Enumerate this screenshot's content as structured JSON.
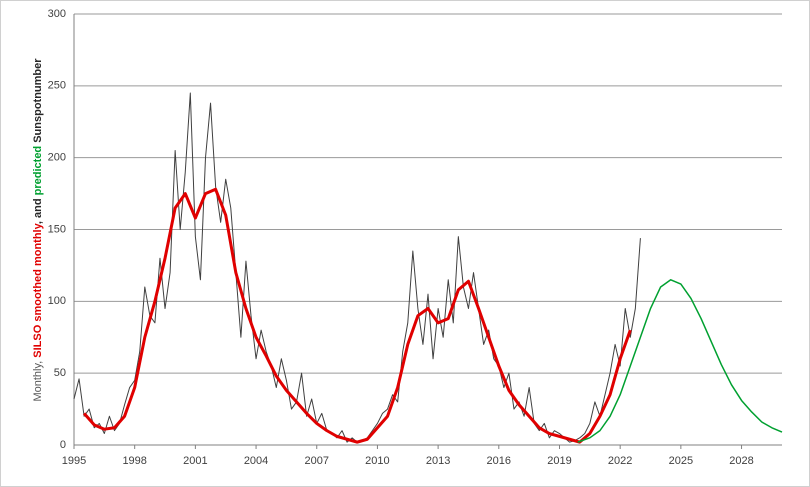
{
  "chart_data": {
    "type": "line",
    "ylabel_parts": [
      {
        "text": "Monthly, ",
        "color": "#595959"
      },
      {
        "text": "SILSO smoothed monthly",
        "color": "#e00000"
      },
      {
        "text": ", and ",
        "color": "#262626"
      },
      {
        "text": "predicted",
        "color": "#00a030"
      },
      {
        "text": " Sunspotnumber",
        "color": "#262626"
      }
    ],
    "xlim": [
      1995,
      2030
    ],
    "ylim": [
      0,
      300
    ],
    "xticks": [
      1995,
      1998,
      2001,
      2004,
      2007,
      2010,
      2013,
      2016,
      2019,
      2022,
      2025,
      2028
    ],
    "yticks": [
      0,
      50,
      100,
      150,
      200,
      250,
      300
    ],
    "grid": true,
    "series": [
      {
        "color": "#404040",
        "line_width": 1,
        "x": [
          1995,
          1995.25,
          1995.5,
          1995.75,
          1996,
          1996.25,
          1996.5,
          1996.75,
          1997,
          1997.25,
          1997.5,
          1997.75,
          1998,
          1998.25,
          1998.5,
          1998.75,
          1999,
          1999.25,
          1999.5,
          1999.75,
          2000,
          2000.25,
          2000.5,
          2000.75,
          2001,
          2001.25,
          2001.5,
          2001.75,
          2002,
          2002.25,
          2002.5,
          2002.75,
          2003,
          2003.25,
          2003.5,
          2003.75,
          2004,
          2004.25,
          2004.5,
          2004.75,
          2005,
          2005.25,
          2005.5,
          2005.75,
          2006,
          2006.25,
          2006.5,
          2006.75,
          2007,
          2007.25,
          2007.5,
          2007.75,
          2008,
          2008.25,
          2008.5,
          2008.75,
          2009,
          2009.25,
          2009.5,
          2009.75,
          2010,
          2010.25,
          2010.5,
          2010.75,
          2011,
          2011.25,
          2011.5,
          2011.75,
          2012,
          2012.25,
          2012.5,
          2012.75,
          2013,
          2013.25,
          2013.5,
          2013.75,
          2014,
          2014.25,
          2014.5,
          2014.75,
          2015,
          2015.25,
          2015.5,
          2015.75,
          2016,
          2016.25,
          2016.5,
          2016.75,
          2017,
          2017.25,
          2017.5,
          2017.75,
          2018,
          2018.25,
          2018.5,
          2018.75,
          2019,
          2019.25,
          2019.5,
          2019.75,
          2020,
          2020.25,
          2020.5,
          2020.75,
          2021,
          2021.25,
          2021.5,
          2021.75,
          2022,
          2022.25,
          2022.5,
          2022.75,
          2023
        ],
        "values": [
          32,
          46,
          20,
          25,
          12,
          15,
          8,
          20,
          10,
          15,
          28,
          40,
          45,
          65,
          110,
          90,
          85,
          130,
          95,
          120,
          205,
          150,
          190,
          245,
          145,
          115,
          200,
          238,
          180,
          155,
          185,
          165,
          120,
          75,
          128,
          90,
          60,
          80,
          65,
          55,
          40,
          60,
          45,
          25,
          30,
          50,
          20,
          32,
          15,
          22,
          10,
          8,
          5,
          10,
          2,
          5,
          2,
          3,
          5,
          10,
          15,
          22,
          25,
          35,
          30,
          65,
          85,
          135,
          95,
          70,
          105,
          60,
          95,
          75,
          115,
          85,
          145,
          110,
          95,
          120,
          95,
          70,
          80,
          60,
          55,
          40,
          50,
          25,
          30,
          20,
          40,
          15,
          10,
          15,
          5,
          10,
          8,
          5,
          2,
          3,
          5,
          8,
          15,
          30,
          20,
          35,
          50,
          70,
          55,
          95,
          75,
          95,
          144
        ]
      },
      {
        "color": "#e00000",
        "line_width": 3,
        "x": [
          1995.5,
          1996,
          1996.5,
          1997,
          1997.5,
          1998,
          1998.5,
          1999,
          1999.5,
          2000,
          2000.5,
          2001,
          2001.5,
          2002,
          2002.5,
          2003,
          2003.5,
          2004,
          2004.5,
          2005,
          2005.5,
          2006,
          2006.5,
          2007,
          2007.5,
          2008,
          2008.5,
          2009,
          2009.5,
          2010,
          2010.5,
          2011,
          2011.5,
          2012,
          2012.5,
          2013,
          2013.5,
          2014,
          2014.5,
          2015,
          2015.5,
          2016,
          2016.5,
          2017,
          2017.5,
          2018,
          2018.5,
          2019,
          2019.5,
          2020,
          2020.5,
          2021,
          2021.5,
          2022,
          2022.5
        ],
        "values": [
          22,
          14,
          11,
          12,
          20,
          40,
          75,
          100,
          130,
          165,
          175,
          158,
          175,
          178,
          160,
          120,
          95,
          75,
          62,
          48,
          38,
          30,
          22,
          15,
          10,
          6,
          4,
          2,
          4,
          12,
          20,
          40,
          70,
          90,
          95,
          85,
          88,
          108,
          114,
          95,
          75,
          55,
          38,
          28,
          20,
          12,
          8,
          6,
          4,
          2,
          8,
          20,
          35,
          60,
          80
        ]
      },
      {
        "color": "#00a030",
        "line_width": 1.5,
        "x": [
          2019.9,
          2020.5,
          2021,
          2021.5,
          2022,
          2022.5,
          2023,
          2023.5,
          2024,
          2024.5,
          2025,
          2025.5,
          2026,
          2026.5,
          2027,
          2027.5,
          2028,
          2028.5,
          2029,
          2029.5,
          2030
        ],
        "values": [
          2,
          5,
          10,
          20,
          35,
          55,
          75,
          95,
          110,
          115,
          112,
          102,
          88,
          72,
          56,
          42,
          31,
          23,
          16,
          12,
          9
        ]
      }
    ]
  }
}
